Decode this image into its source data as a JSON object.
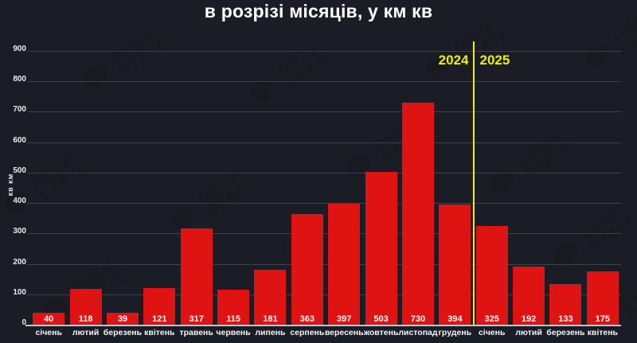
{
  "title": "в розрізі місяців, у км кв",
  "watermark": {
    "line1": "DEEP",
    "line2": "STATE",
    "icon": "ukraine-map-icon"
  },
  "year_markers": {
    "left": "2024",
    "right": "2025"
  },
  "colors": {
    "background": "#1a1d25",
    "bar": "#e01313",
    "accent_yellow": "#eef000",
    "text": "#ffffff",
    "grid": "rgba(190,197,212,0.22)"
  },
  "chart_data": {
    "type": "bar",
    "title": "в розрізі місяців, у км кв",
    "xlabel": "",
    "ylabel": "кв км",
    "ylim": [
      0,
      900
    ],
    "yticks": [
      0,
      100,
      200,
      300,
      400,
      500,
      600,
      700,
      800,
      900
    ],
    "grid": "horizontal",
    "legend": "none",
    "bar_color": "#e01313",
    "categories": [
      "січень",
      "лютий",
      "березень",
      "квітень",
      "травень",
      "червень",
      "липень",
      "серпень",
      "вересень",
      "жовтень",
      "листопад",
      "грудень",
      "січень",
      "лютий",
      "березень",
      "квітень"
    ],
    "values": [
      40,
      118,
      39,
      121,
      317,
      115,
      181,
      363,
      397,
      503,
      730,
      394,
      325,
      192,
      133,
      175
    ],
    "year_divider_after_index": 11,
    "year_left": "2024",
    "year_right": "2025",
    "value_labels": "inside-bottom"
  }
}
